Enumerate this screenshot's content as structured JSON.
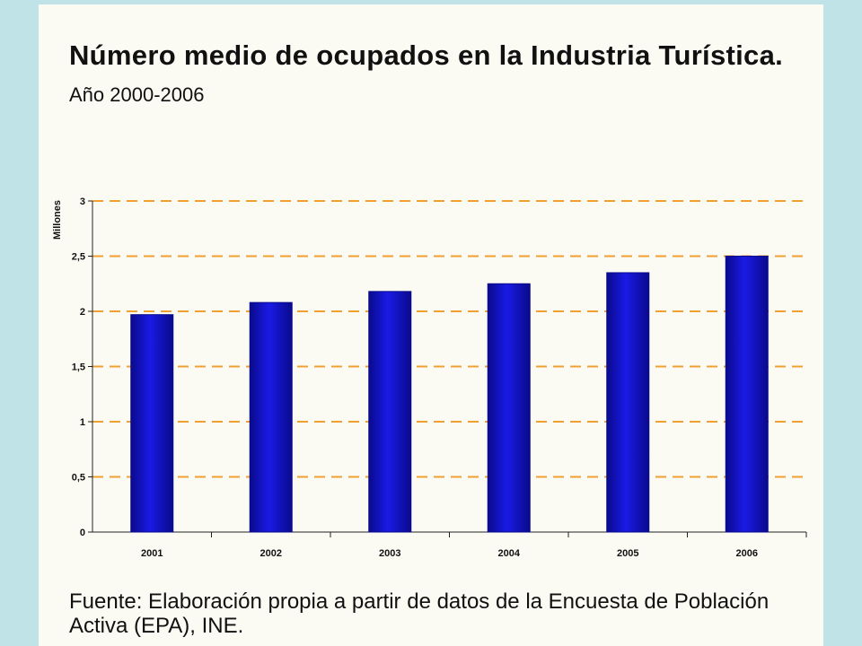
{
  "title": {
    "main": "Número medio de ocupados en la Industria Turística.",
    "sub": "Año 2000-2006"
  },
  "source": "Fuente: Elaboración propia a partir de datos de la Encuesta de Población Activa (EPA), INE.",
  "colors": {
    "bar": "#1a1ae6",
    "bar_dark": "#0a0a8c",
    "grid": "#f0a030",
    "background": "#bfe3e6",
    "card": "#fbfaf3"
  },
  "chart_data": {
    "type": "bar",
    "categories": [
      "2001",
      "2002",
      "2003",
      "2004",
      "2005",
      "2006"
    ],
    "values": [
      1.97,
      2.08,
      2.18,
      2.25,
      2.35,
      2.5
    ],
    "ylabel": "Millones",
    "ylim": [
      0,
      3
    ],
    "yticks": [
      "0",
      "0,5",
      "1",
      "1,5",
      "2",
      "2,5",
      "3"
    ],
    "grid": true,
    "grid_style": "dashed"
  }
}
